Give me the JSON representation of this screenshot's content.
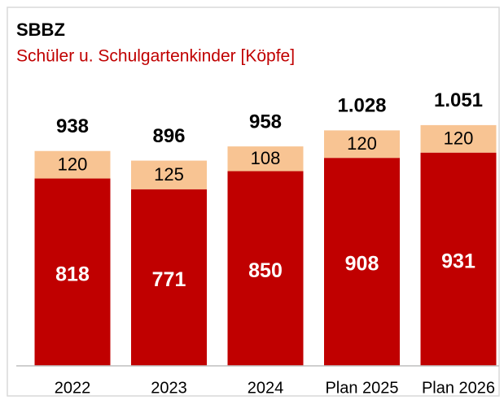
{
  "chart_data": {
    "type": "stacked-bar",
    "title": "SBBZ",
    "subtitle": "Schüler u. Schulgartenkinder [Köpfe]",
    "categories": [
      "2022",
      "2023",
      "2024",
      "Plan 2025",
      "Plan 2026"
    ],
    "series": [
      {
        "name": "Schüler",
        "color": "#c00000",
        "values": [
          818,
          771,
          850,
          908,
          931
        ]
      },
      {
        "name": "Schulgartenkinder",
        "color": "#f8c493",
        "values": [
          120,
          125,
          108,
          120,
          120
        ]
      }
    ],
    "totals": {
      "values": [
        938,
        896,
        958,
        1028,
        1051
      ],
      "value_labels": [
        "938",
        "896",
        "958",
        "1.028",
        "1.051"
      ]
    },
    "ylim": [
      0,
      1150
    ]
  }
}
